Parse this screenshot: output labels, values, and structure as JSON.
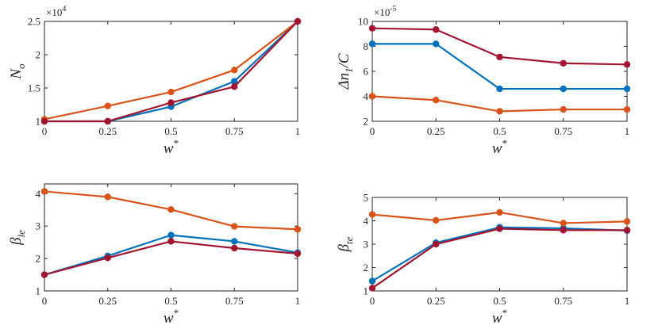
{
  "chart_data": [
    {
      "type": "line",
      "x": [
        0,
        0.25,
        0.5,
        0.75,
        1
      ],
      "x_ticks": [
        "0",
        "0.25",
        "0.5",
        "0.75",
        "1"
      ],
      "xlim": [
        0,
        1
      ],
      "ylim": [
        1,
        2.5
      ],
      "y_ticks": [
        "1",
        "1.5",
        "2",
        "2.5"
      ],
      "y_tick_values": [
        1,
        1.5,
        2,
        2.5
      ],
      "xlabel_base": "w",
      "xlabel_sup": "*",
      "ylabel_base": "N",
      "ylabel_sub": "o",
      "multiplier_base": "×10",
      "multiplier_exp": "4",
      "series": [
        {
          "name": "blue",
          "color": "#0072BD",
          "values": [
            1.0,
            1.0,
            1.22,
            1.6,
            2.5
          ]
        },
        {
          "name": "orange",
          "color": "#D95319",
          "values": [
            1.03,
            1.23,
            1.44,
            1.77,
            2.5
          ]
        },
        {
          "name": "crimson",
          "color": "#A2142F",
          "values": [
            1.0,
            1.0,
            1.28,
            1.52,
            2.5
          ]
        }
      ]
    },
    {
      "type": "line",
      "x": [
        0,
        0.25,
        0.5,
        0.75,
        1
      ],
      "x_ticks": [
        "0",
        "0.25",
        "0.5",
        "0.75",
        "1"
      ],
      "xlim": [
        0,
        1
      ],
      "ylim": [
        2,
        10
      ],
      "y_ticks": [
        "2",
        "4",
        "6",
        "8",
        "10"
      ],
      "y_tick_values": [
        2,
        4,
        6,
        8,
        10
      ],
      "xlabel_base": "w",
      "xlabel_sup": "*",
      "ylabel_base": "Δn",
      "ylabel_sub": "1",
      "ylabel_tail": "/C",
      "multiplier_base": "×10",
      "multiplier_exp": "-5",
      "series": [
        {
          "name": "blue",
          "color": "#0072BD",
          "values": [
            8.2,
            8.2,
            4.6,
            4.6,
            4.6
          ]
        },
        {
          "name": "orange",
          "color": "#D95319",
          "values": [
            4.0,
            3.7,
            2.8,
            2.95,
            2.95
          ]
        },
        {
          "name": "crimson",
          "color": "#A2142F",
          "values": [
            9.45,
            9.35,
            7.15,
            6.65,
            6.55
          ]
        }
      ]
    },
    {
      "type": "line",
      "x": [
        0,
        0.25,
        0.5,
        0.75,
        1
      ],
      "x_ticks": [
        "0",
        "0.25",
        "0.5",
        "0.75",
        "1"
      ],
      "xlim": [
        0,
        1
      ],
      "ylim": [
        1,
        4.3
      ],
      "y_ticks": [
        "1",
        "2",
        "3",
        "4"
      ],
      "y_tick_values": [
        1,
        2,
        3,
        4
      ],
      "xlabel_base": "w",
      "xlabel_sup": "*",
      "ylabel_base": "β",
      "ylabel_sub": "le",
      "series": [
        {
          "name": "blue",
          "color": "#0072BD",
          "values": [
            1.5,
            2.08,
            2.72,
            2.53,
            2.18
          ]
        },
        {
          "name": "orange",
          "color": "#D95319",
          "values": [
            4.07,
            3.9,
            3.51,
            2.99,
            2.9
          ]
        },
        {
          "name": "crimson",
          "color": "#A2142F",
          "values": [
            1.5,
            2.02,
            2.53,
            2.32,
            2.15
          ]
        }
      ]
    },
    {
      "type": "line",
      "x": [
        0,
        0.25,
        0.5,
        0.75,
        1
      ],
      "x_ticks": [
        "0",
        "0.25",
        "0.5",
        "0.75",
        "1"
      ],
      "xlim": [
        0,
        1
      ],
      "ylim": [
        1,
        5
      ],
      "y_ticks": [
        "1",
        "2",
        "3",
        "4",
        "5"
      ],
      "y_tick_values": [
        1,
        2,
        3,
        4,
        5
      ],
      "xlabel_base": "w",
      "xlabel_sup": "*",
      "ylabel_base": "β",
      "ylabel_sub": "te",
      "series": [
        {
          "name": "blue",
          "color": "#0072BD",
          "values": [
            1.42,
            3.06,
            3.72,
            3.68,
            3.58
          ]
        },
        {
          "name": "orange",
          "color": "#D95319",
          "values": [
            4.27,
            4.02,
            4.36,
            3.9,
            3.97
          ]
        },
        {
          "name": "crimson",
          "color": "#A2142F",
          "values": [
            1.12,
            3.0,
            3.66,
            3.6,
            3.6
          ]
        }
      ]
    }
  ]
}
